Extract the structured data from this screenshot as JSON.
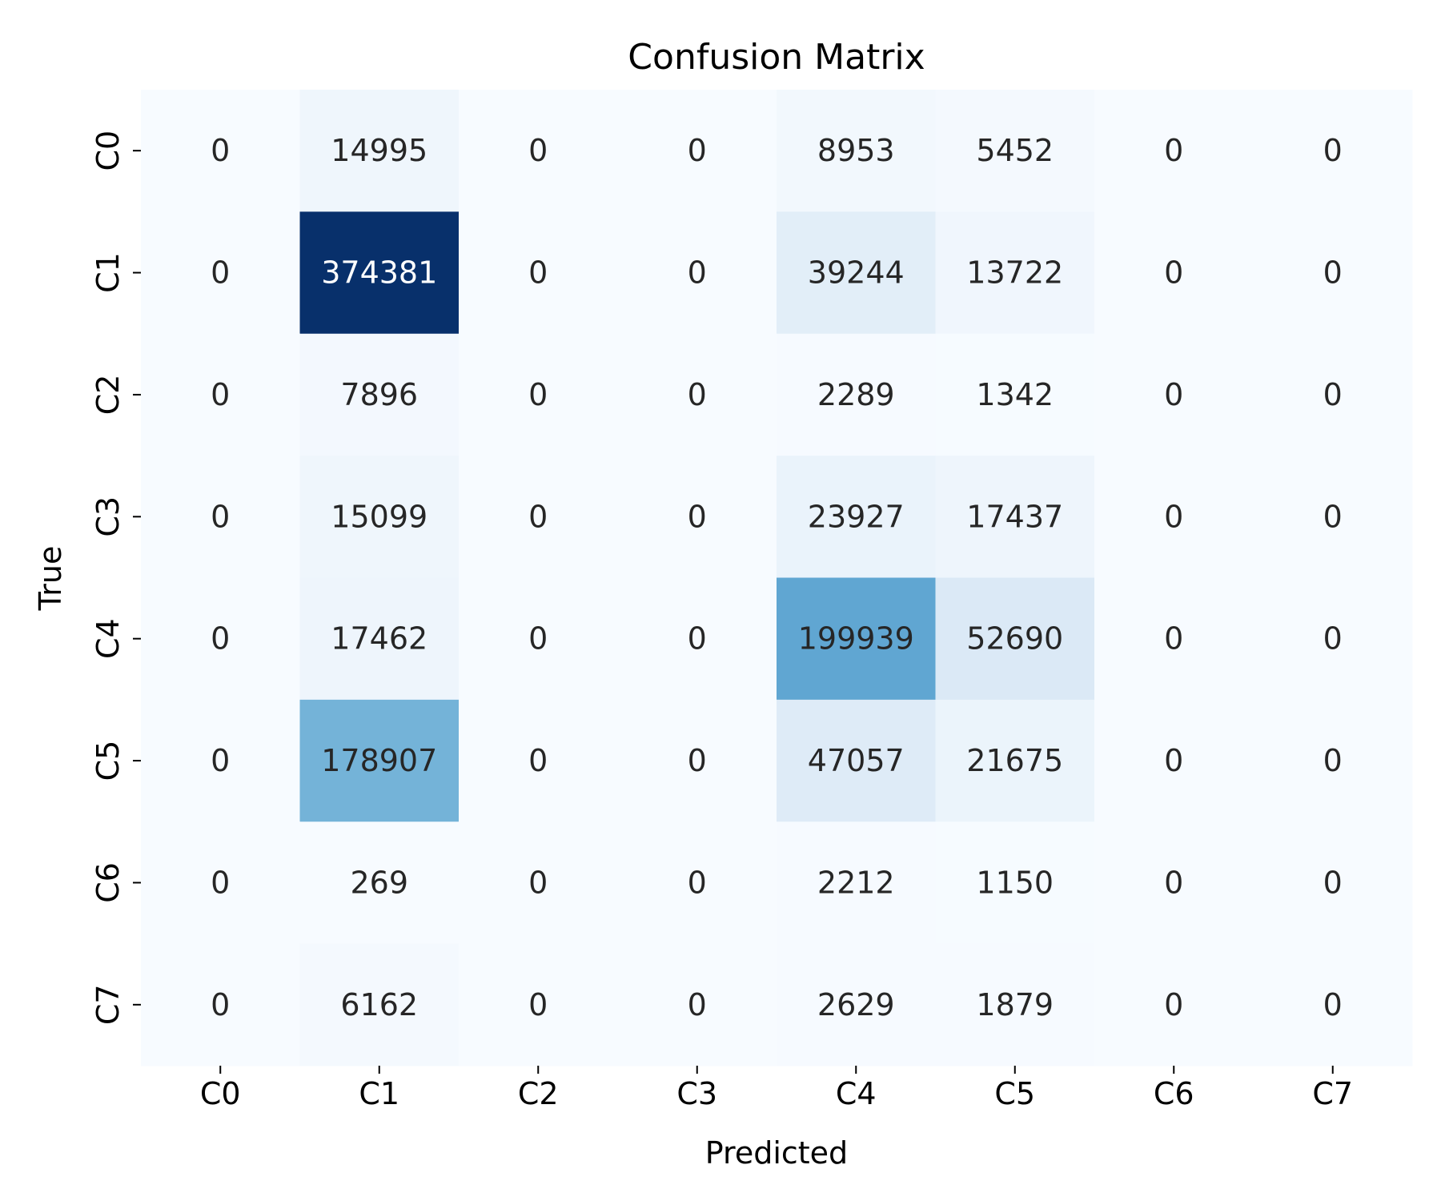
{
  "chart_data": {
    "type": "heatmap",
    "title": "Confusion Matrix",
    "xlabel": "Predicted",
    "ylabel": "True",
    "x_categories": [
      "C0",
      "C1",
      "C2",
      "C3",
      "C4",
      "C5",
      "C6",
      "C7"
    ],
    "y_categories": [
      "C0",
      "C1",
      "C2",
      "C3",
      "C4",
      "C5",
      "C6",
      "C7"
    ],
    "values": [
      [
        0,
        14995,
        0,
        0,
        8953,
        5452,
        0,
        0
      ],
      [
        0,
        374381,
        0,
        0,
        39244,
        13722,
        0,
        0
      ],
      [
        0,
        7896,
        0,
        0,
        2289,
        1342,
        0,
        0
      ],
      [
        0,
        15099,
        0,
        0,
        23927,
        17437,
        0,
        0
      ],
      [
        0,
        17462,
        0,
        0,
        199939,
        52690,
        0,
        0
      ],
      [
        0,
        178907,
        0,
        0,
        47057,
        21675,
        0,
        0
      ],
      [
        0,
        269,
        0,
        0,
        2212,
        1150,
        0,
        0
      ],
      [
        0,
        6162,
        0,
        0,
        2629,
        1879,
        0,
        0
      ]
    ],
    "colormap": "Blues",
    "colorbar": false,
    "grid": false
  }
}
